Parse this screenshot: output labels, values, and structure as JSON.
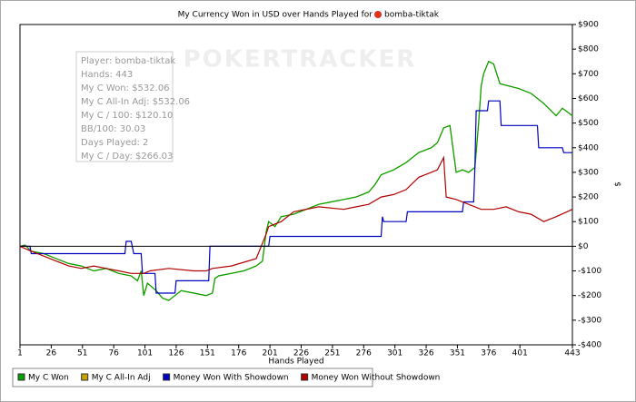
{
  "chart_data": {
    "type": "line",
    "title": "My Currency Won in USD over Hands Played for",
    "title_player": "bomba-tiktak",
    "watermark": "POKERTRACKER",
    "xlabel": "Hands Played",
    "ylabel": "$",
    "annotation_lines": [
      "Player: bomba-tiktak",
      "Hands: 443",
      "My C Won: $532.06",
      "My C All-In Adj: $532.06",
      "My C / 100: $120.10",
      "BB/100: 30.03",
      "Days Played: 2",
      "My C / Day: $266.03"
    ],
    "xlim": [
      1,
      443
    ],
    "xticks": [
      1,
      26,
      51,
      76,
      101,
      126,
      151,
      176,
      201,
      226,
      251,
      276,
      301,
      326,
      351,
      376,
      401,
      443
    ],
    "ylim": [
      -400,
      900
    ],
    "yticks": [
      {
        "value": -400,
        "label": "-$400"
      },
      {
        "value": -300,
        "label": "-$300"
      },
      {
        "value": -200,
        "label": "-$200"
      },
      {
        "value": -100,
        "label": "-$100"
      },
      {
        "value": 0,
        "label": "$0"
      },
      {
        "value": 100,
        "label": "$100"
      },
      {
        "value": 200,
        "label": "$200"
      },
      {
        "value": 300,
        "label": "$300"
      },
      {
        "value": 400,
        "label": "$400"
      },
      {
        "value": 500,
        "label": "$500"
      },
      {
        "value": 600,
        "label": "$600"
      },
      {
        "value": 700,
        "label": "$700"
      },
      {
        "value": 800,
        "label": "$800"
      },
      {
        "value": 900,
        "label": "$900"
      }
    ],
    "series": [
      {
        "name": "My C All-In Adj",
        "color": "#c8a000",
        "x": [
          1,
          5,
          10,
          20,
          30,
          40,
          50,
          60,
          70,
          80,
          90,
          95,
          98,
          100,
          103,
          110,
          115,
          120,
          125,
          130,
          140,
          150,
          155,
          157,
          160,
          170,
          180,
          190,
          195,
          198,
          200,
          205,
          210,
          220,
          230,
          240,
          250,
          260,
          270,
          280,
          285,
          290,
          300,
          310,
          320,
          330,
          335,
          340,
          345,
          350,
          355,
          360,
          365,
          368,
          370,
          372,
          376,
          380,
          385,
          400,
          410,
          420,
          430,
          435,
          443
        ],
        "values": [
          0,
          5,
          -20,
          -30,
          -50,
          -70,
          -80,
          -100,
          -90,
          -110,
          -120,
          -140,
          -100,
          -200,
          -150,
          -180,
          -210,
          -220,
          -200,
          -180,
          -190,
          -200,
          -190,
          -130,
          -120,
          -110,
          -100,
          -80,
          -60,
          60,
          100,
          80,
          120,
          130,
          150,
          170,
          180,
          190,
          200,
          220,
          250,
          290,
          310,
          340,
          380,
          400,
          420,
          480,
          490,
          300,
          310,
          300,
          320,
          500,
          650,
          700,
          750,
          740,
          660,
          640,
          620,
          580,
          530,
          560,
          530
        ]
      },
      {
        "name": "My C Won",
        "color": "#00a000",
        "x": [
          1,
          5,
          10,
          20,
          30,
          40,
          50,
          60,
          70,
          80,
          90,
          95,
          98,
          100,
          103,
          110,
          115,
          120,
          125,
          130,
          140,
          150,
          155,
          157,
          160,
          170,
          180,
          190,
          195,
          198,
          200,
          205,
          210,
          220,
          230,
          240,
          250,
          260,
          270,
          280,
          285,
          290,
          300,
          310,
          320,
          330,
          335,
          340,
          345,
          350,
          355,
          360,
          365,
          368,
          370,
          372,
          376,
          380,
          385,
          400,
          410,
          420,
          430,
          435,
          443
        ],
        "values": [
          0,
          5,
          -20,
          -30,
          -50,
          -70,
          -80,
          -100,
          -90,
          -110,
          -120,
          -140,
          -100,
          -200,
          -150,
          -180,
          -210,
          -220,
          -200,
          -180,
          -190,
          -200,
          -190,
          -130,
          -120,
          -110,
          -100,
          -80,
          -60,
          60,
          100,
          80,
          120,
          130,
          150,
          170,
          180,
          190,
          200,
          220,
          250,
          290,
          310,
          340,
          380,
          400,
          420,
          480,
          490,
          300,
          310,
          300,
          320,
          500,
          650,
          700,
          750,
          740,
          660,
          640,
          620,
          580,
          530,
          560,
          530
        ]
      },
      {
        "name": "Money Won With Showdown",
        "color": "#0000c0",
        "x": [
          1,
          9,
          10,
          60,
          85,
          86,
          90,
          92,
          98,
          99,
          109,
          110,
          125,
          126,
          152,
          153,
          200,
          201,
          290,
          291,
          292,
          310,
          311,
          355,
          356,
          364,
          365,
          366,
          375,
          376,
          385,
          386,
          415,
          416,
          435,
          436,
          443
        ],
        "values": [
          0,
          0,
          -30,
          -30,
          -30,
          20,
          20,
          -30,
          -30,
          -110,
          -110,
          -190,
          -190,
          -140,
          -140,
          0,
          0,
          40,
          40,
          120,
          100,
          100,
          140,
          140,
          180,
          180,
          320,
          550,
          550,
          590,
          590,
          490,
          490,
          400,
          400,
          380,
          380
        ]
      },
      {
        "name": "Money Won Without Showdown",
        "color": "#b00000",
        "x": [
          1,
          10,
          20,
          30,
          40,
          50,
          60,
          70,
          80,
          90,
          100,
          105,
          120,
          140,
          150,
          155,
          170,
          190,
          198,
          200,
          210,
          220,
          240,
          260,
          270,
          280,
          290,
          300,
          310,
          320,
          330,
          335,
          340,
          342,
          350,
          360,
          370,
          380,
          390,
          400,
          410,
          420,
          430,
          443
        ],
        "values": [
          0,
          -20,
          -40,
          -60,
          -80,
          -90,
          -80,
          -90,
          -100,
          -110,
          -110,
          -100,
          -90,
          -100,
          -100,
          -90,
          -80,
          -50,
          50,
          80,
          100,
          140,
          160,
          150,
          160,
          170,
          200,
          210,
          230,
          280,
          300,
          310,
          360,
          200,
          190,
          170,
          150,
          150,
          160,
          140,
          130,
          100,
          120,
          150
        ]
      }
    ]
  }
}
